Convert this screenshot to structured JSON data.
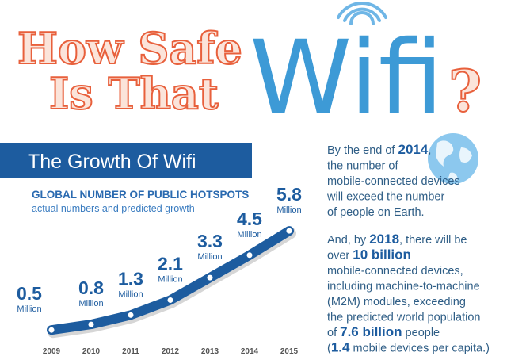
{
  "header": {
    "title_line_1": "How Safe",
    "title_line_2": "Is That",
    "title_big": "Wifi",
    "question_mark": "?"
  },
  "banner": "The Growth Of Wifi",
  "chart_data": {
    "type": "line",
    "title": "GLOBAL NUMBER OF PUBLIC HOTSPOTS",
    "subtitle": "actual numbers and predicted growth",
    "categories": [
      "2009",
      "2010",
      "2011",
      "2012",
      "2013",
      "2014",
      "2015"
    ],
    "values": [
      0.5,
      0.8,
      1.3,
      2.1,
      3.3,
      4.5,
      5.8
    ],
    "unit": "Million",
    "color": "#1d5c9f"
  },
  "side_text": {
    "paragraph_1": [
      [
        "By the end of ",
        "2014",
        ","
      ],
      [
        "the number of"
      ],
      [
        "mobile-connected devices"
      ],
      [
        "will exceed the number"
      ],
      [
        "of people on Earth."
      ]
    ],
    "paragraph_2": [
      [
        "And, by ",
        "2018",
        ", there will be"
      ],
      [
        "over ",
        "10 billion"
      ],
      [
        "mobile-connected devices,"
      ],
      [
        "including machine-to-machine"
      ],
      [
        "(M2M) modules, exceeding"
      ],
      [
        "the predicted world population"
      ],
      [
        "of ",
        "7.6 billion",
        " people"
      ],
      [
        "(",
        "1.4",
        " mobile devices per capita.)"
      ]
    ]
  }
}
